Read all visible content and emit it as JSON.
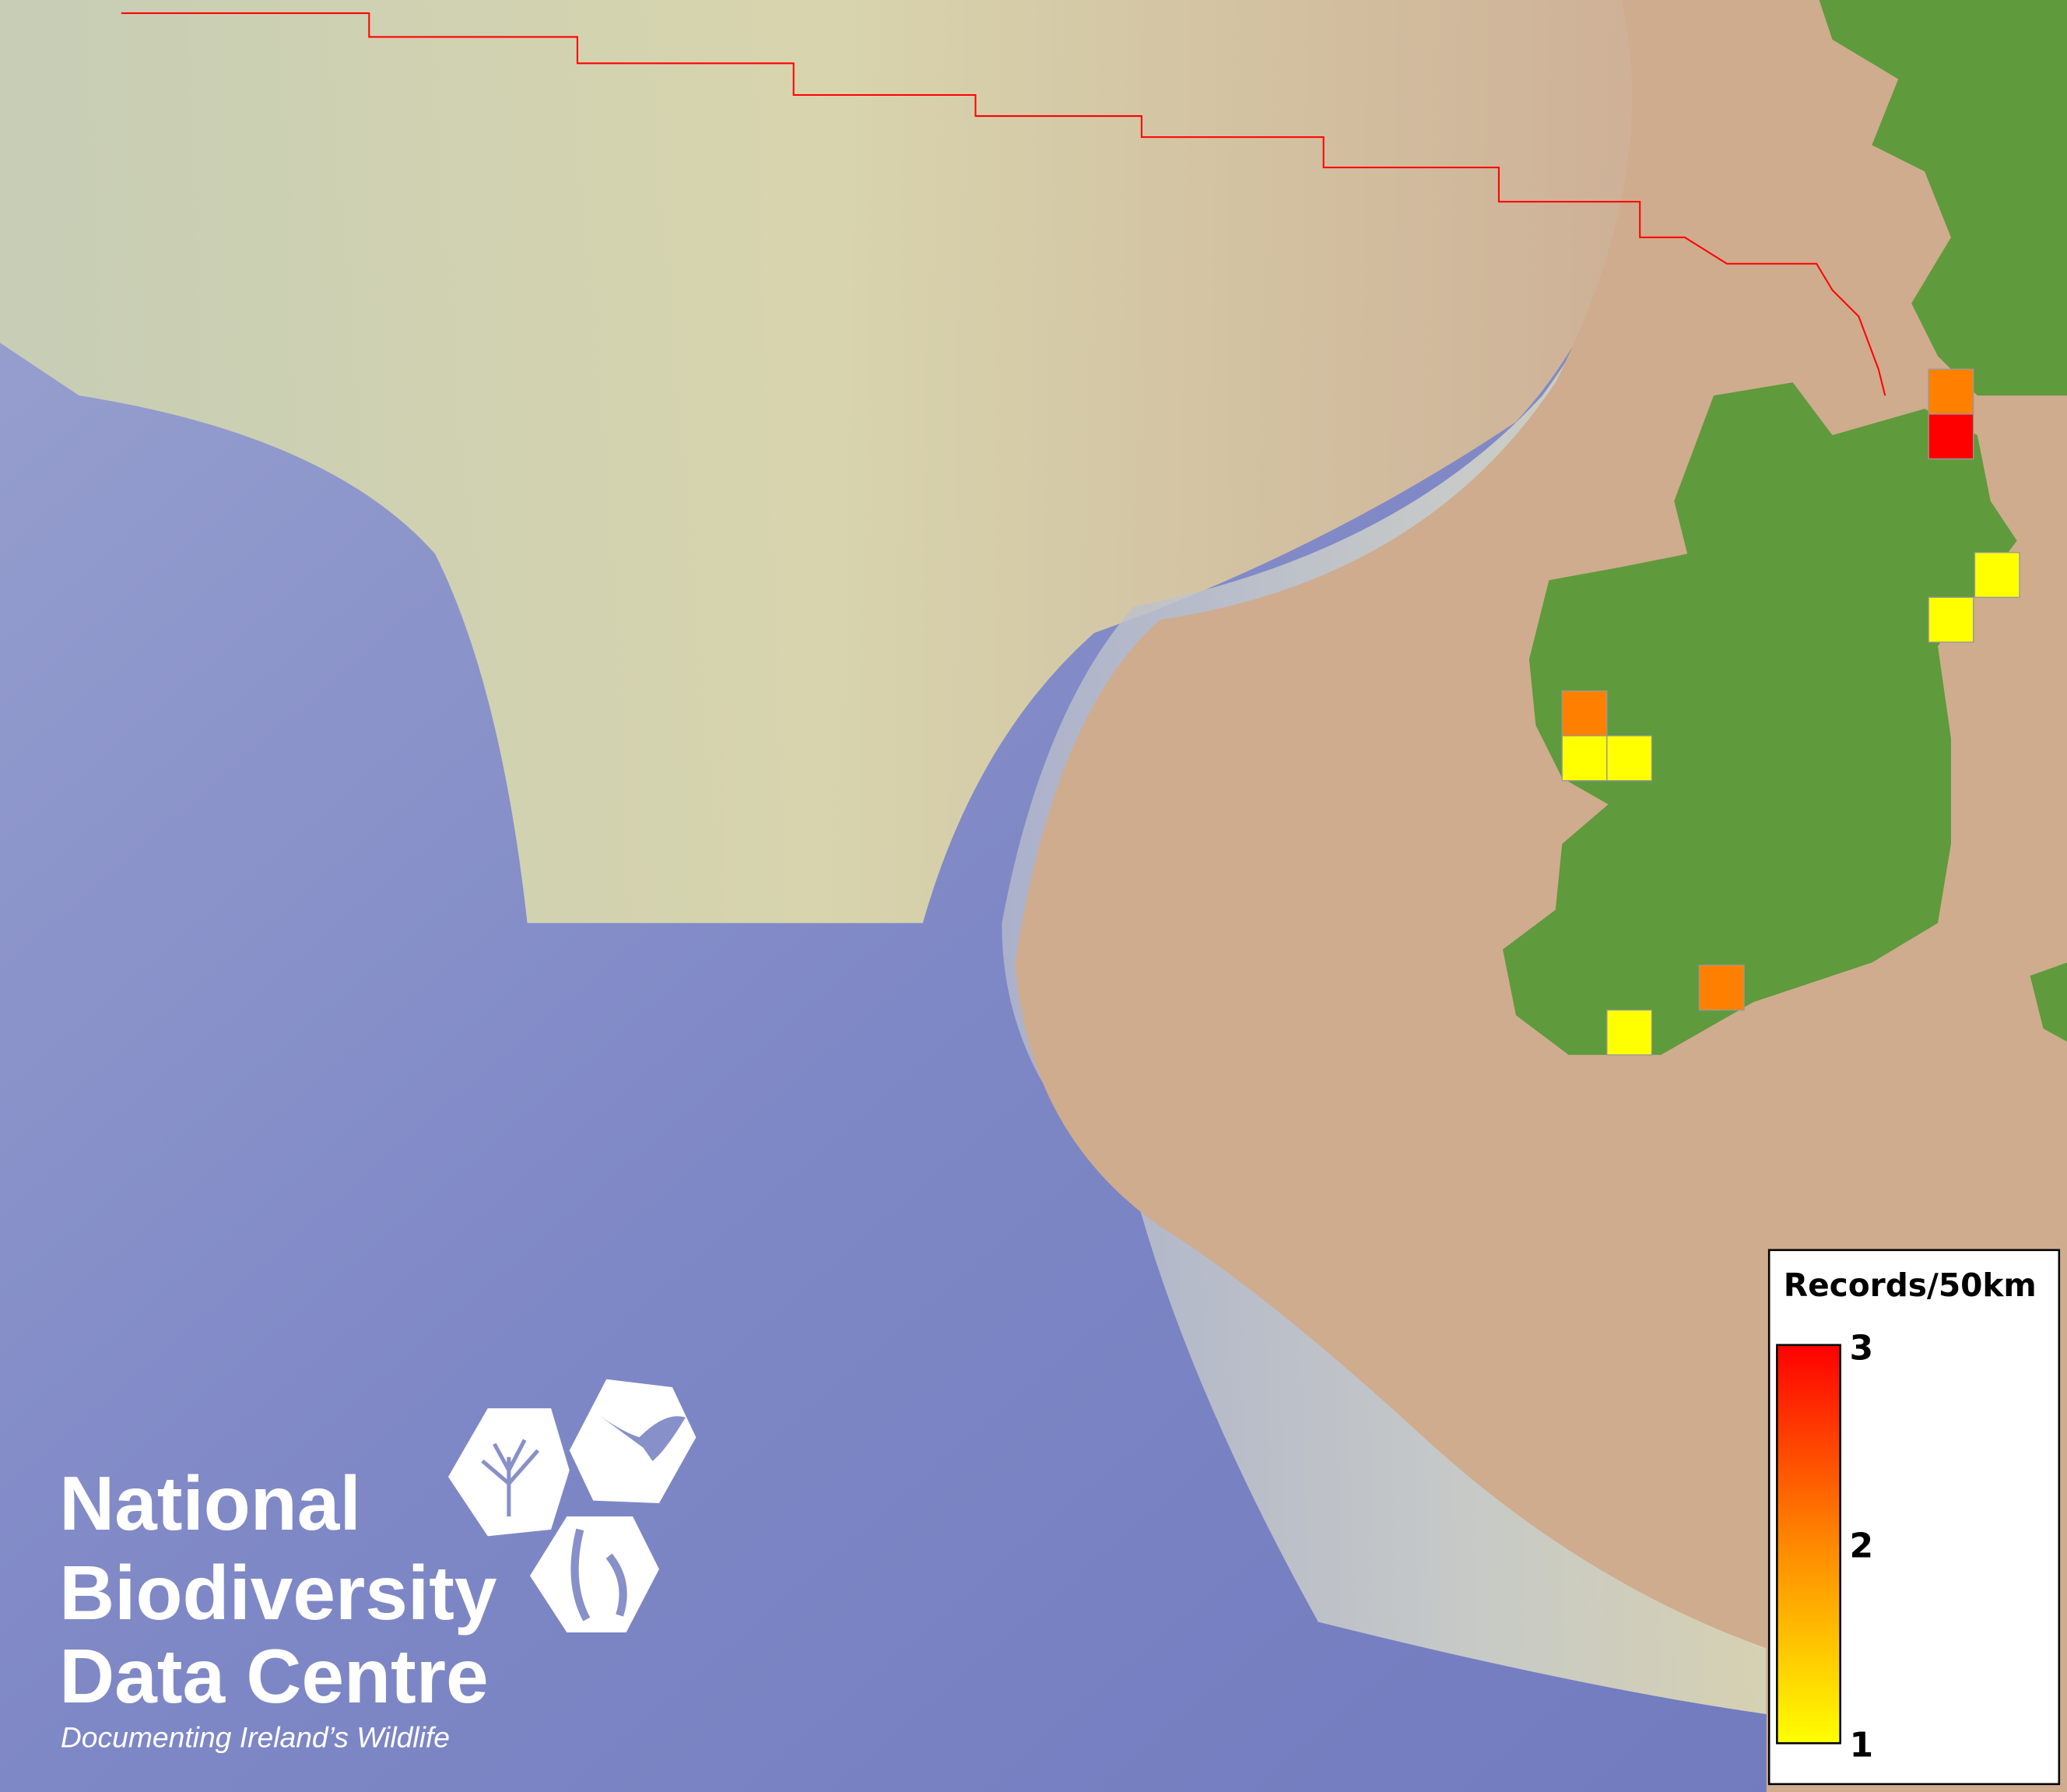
{
  "legend": {
    "title": "Records/50km",
    "ticks": [
      "3",
      "2",
      "1"
    ],
    "scale": {
      "min": 1,
      "max": 3,
      "colors": [
        "#ffff00",
        "#ff8800",
        "#ff0000"
      ]
    }
  },
  "records": [
    {
      "value": 2
    },
    {
      "value": 3
    },
    {
      "value": 1
    },
    {
      "value": 1
    },
    {
      "value": 2
    },
    {
      "value": 1
    },
    {
      "value": 1
    },
    {
      "value": 2
    },
    {
      "value": 1
    }
  ],
  "colors": {
    "land": "#5f9a3c",
    "shelf": "#cfb096",
    "deep_sea": "#7d86c4",
    "boundary": "#ff0000"
  },
  "logo": {
    "line1": "National",
    "line2": "Biodiversity",
    "line3": "Data Centre",
    "tagline": "Documenting Ireland’s Wildlife"
  }
}
